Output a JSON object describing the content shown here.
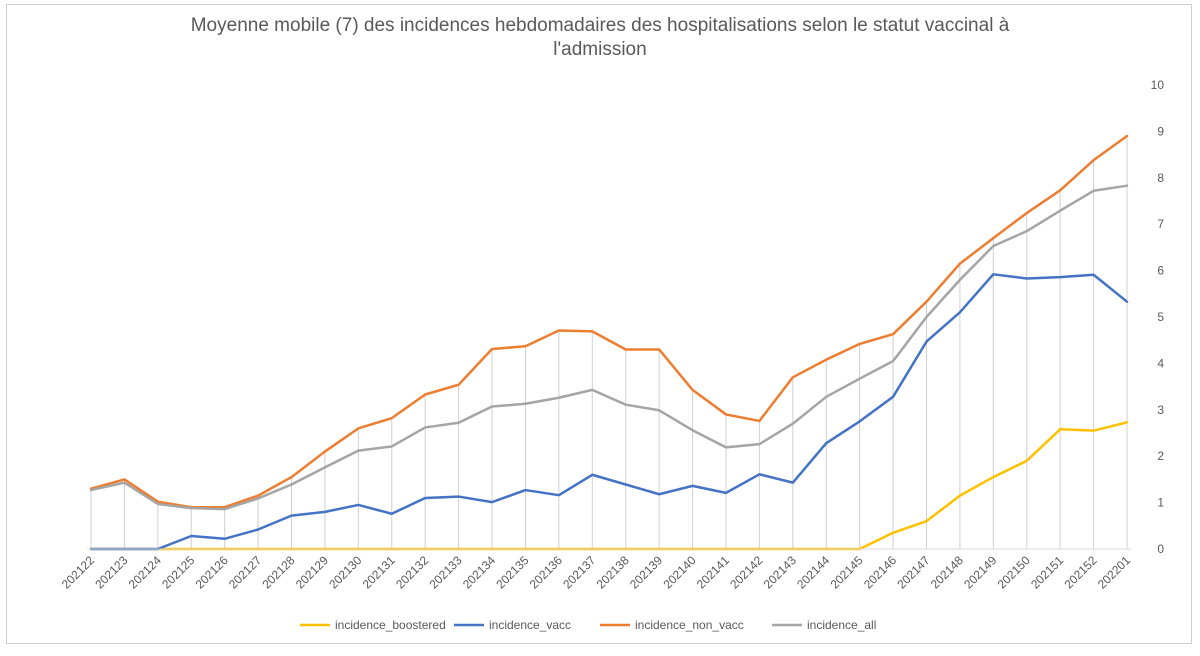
{
  "chart_data": {
    "type": "line",
    "title": "Moyenne mobile (7) des incidences hebdomadaires des hospitalisations selon le statut vaccinal à\nl'admission",
    "xlabel": "",
    "ylabel": "",
    "ylim": [
      0,
      10
    ],
    "y_ticks": [
      "0",
      "1",
      "2",
      "3",
      "4",
      "5",
      "6",
      "7",
      "8",
      "9",
      "10"
    ],
    "y_axis_position": "right",
    "grid": "vertical drop lines",
    "legend_position": "bottom",
    "categories": [
      "202122",
      "202123",
      "202124",
      "202125",
      "202126",
      "202127",
      "202128",
      "202129",
      "202130",
      "202131",
      "202132",
      "202133",
      "202134",
      "202135",
      "202136",
      "202137",
      "202138",
      "202139",
      "202140",
      "202141",
      "202142",
      "202143",
      "202144",
      "202145",
      "202146",
      "202147",
      "202148",
      "202149",
      "202150",
      "202151",
      "202152",
      "202201"
    ],
    "series": [
      {
        "name": "incidence_boostered",
        "color": "#ffc000",
        "values": [
          0,
          0,
          0,
          0,
          0,
          0,
          0,
          0,
          0,
          0,
          0,
          0,
          0,
          0,
          0,
          0,
          0,
          0,
          0,
          0,
          0,
          0,
          0,
          0,
          0.35,
          0.6,
          1.15,
          1.55,
          1.9,
          2.58,
          2.55,
          2.73
        ]
      },
      {
        "name": "incidence_vacc",
        "color": "#4472c4",
        "values": [
          0,
          0,
          0,
          0.28,
          0.22,
          0.42,
          0.72,
          0.8,
          0.95,
          0.76,
          1.1,
          1.13,
          1.01,
          1.27,
          1.16,
          1.6,
          1.39,
          1.18,
          1.36,
          1.21,
          1.61,
          1.43,
          2.28,
          2.75,
          3.28,
          4.47,
          5.1,
          5.92,
          5.83,
          5.86,
          5.91,
          5.33
        ]
      },
      {
        "name": "incidence_non_vacc",
        "color": "#ed7d31",
        "values": [
          1.3,
          1.5,
          1.02,
          0.9,
          0.9,
          1.15,
          1.55,
          2.1,
          2.6,
          2.82,
          3.33,
          3.54,
          4.31,
          4.37,
          4.71,
          4.69,
          4.3,
          4.3,
          3.43,
          2.9,
          2.76,
          3.7,
          4.08,
          4.42,
          4.63,
          5.33,
          6.15,
          6.7,
          7.24,
          7.73,
          8.38,
          8.9
        ]
      },
      {
        "name": "incidence_all",
        "color": "#a5a5a5",
        "values": [
          1.27,
          1.43,
          0.97,
          0.88,
          0.86,
          1.09,
          1.39,
          1.76,
          2.12,
          2.21,
          2.62,
          2.72,
          3.07,
          3.13,
          3.26,
          3.43,
          3.11,
          2.99,
          2.56,
          2.19,
          2.26,
          2.7,
          3.28,
          3.67,
          4.05,
          5.0,
          5.8,
          6.53,
          6.85,
          7.29,
          7.72,
          7.83
        ]
      }
    ]
  }
}
